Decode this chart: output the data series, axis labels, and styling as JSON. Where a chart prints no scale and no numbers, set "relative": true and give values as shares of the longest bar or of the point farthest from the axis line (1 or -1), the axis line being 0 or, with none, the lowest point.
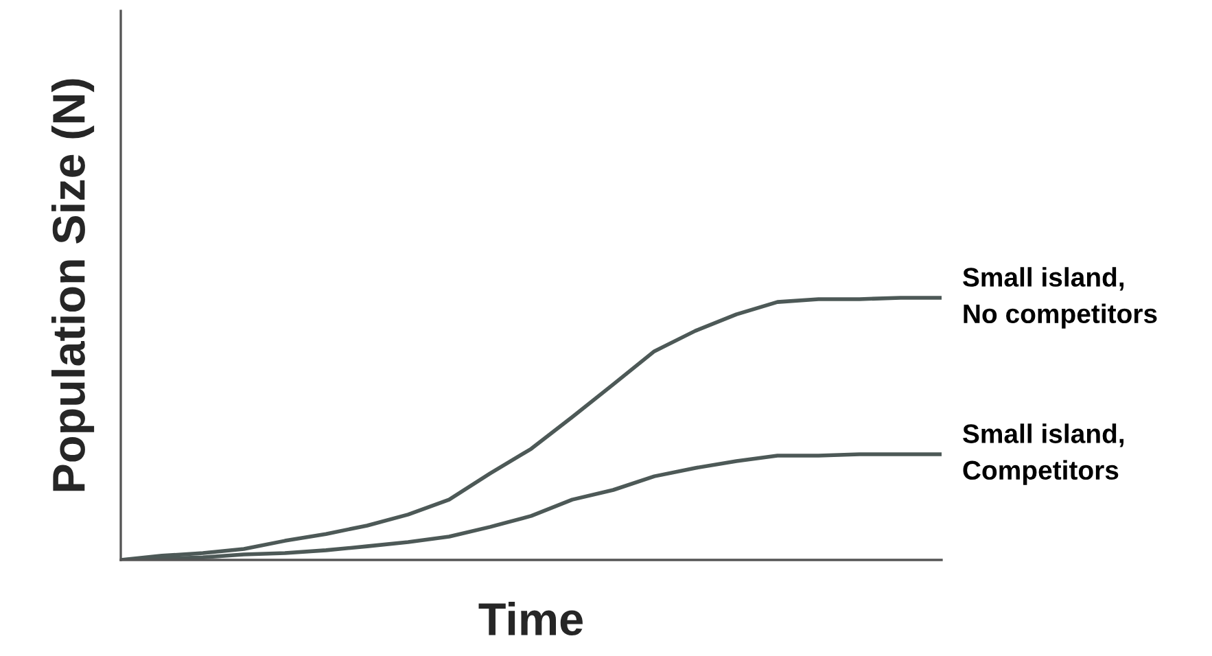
{
  "chart_data": {
    "type": "line",
    "relative": true,
    "xlabel": "Time",
    "ylabel": "Population Size (N)",
    "categories": [
      null,
      null,
      null,
      null,
      null,
      null,
      null,
      null,
      null,
      null,
      null,
      null,
      null,
      null,
      null,
      null,
      null,
      null,
      null,
      null,
      null
    ],
    "series": [
      {
        "name": "Small island,\nNo competitors",
        "color": "#4d5957",
        "values": [
          0,
          0.016,
          0.026,
          0.042,
          0.073,
          0.099,
          0.131,
          0.173,
          0.23,
          0.33,
          0.424,
          0.545,
          0.67,
          0.796,
          0.874,
          0.937,
          0.984,
          0.995,
          0.995,
          1.0,
          1.0
        ]
      },
      {
        "name": "Small island,\nCompetitors",
        "color": "#4d5957",
        "values": [
          0,
          0.005,
          0.01,
          0.021,
          0.026,
          0.037,
          0.052,
          0.068,
          0.089,
          0.126,
          0.168,
          0.23,
          0.267,
          0.319,
          0.351,
          0.377,
          0.398,
          0.398,
          0.403,
          0.403,
          0.403
        ]
      }
    ],
    "grid": false,
    "legend": false,
    "marker": "none",
    "line_style": "solid",
    "tick_labels": false
  }
}
